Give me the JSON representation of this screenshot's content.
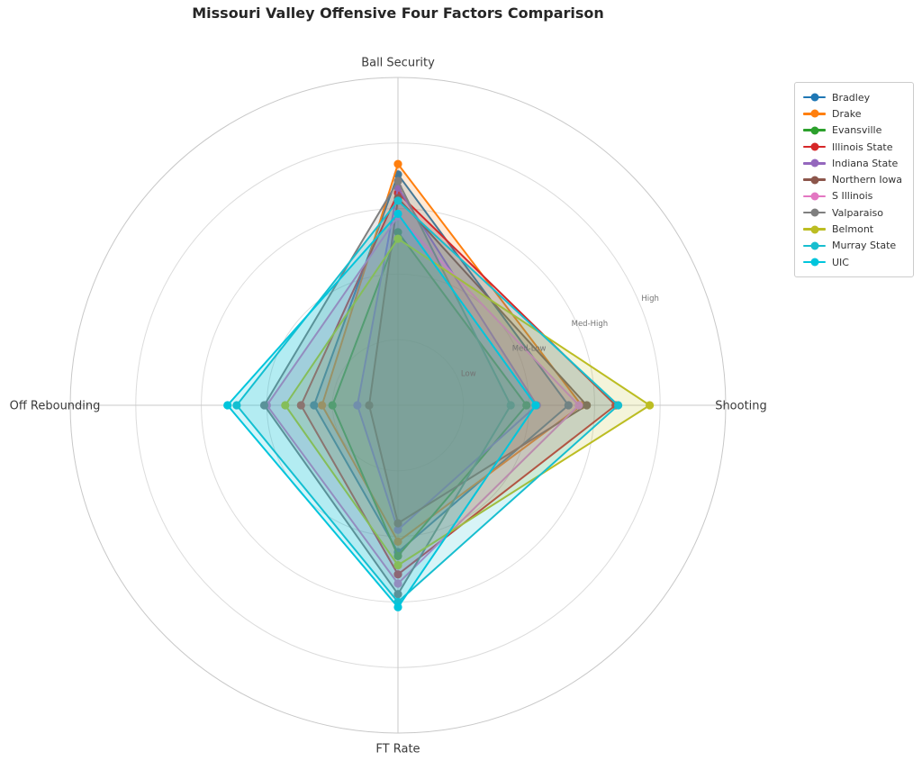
{
  "title": "Missouri Valley Offensive Four Factors Comparison",
  "chart_data": {
    "type": "radar",
    "categories": [
      "Ball Security",
      "Shooting",
      "FT Rate",
      "Off Rebounding"
    ],
    "radial_ticks": [
      {
        "label": "Low",
        "value": 0.25
      },
      {
        "label": "Med-Low",
        "value": 0.5
      },
      {
        "label": "Med-High",
        "value": 0.75
      },
      {
        "label": "High",
        "value": 1.0
      }
    ],
    "rmax": 1.25,
    "grid": true,
    "legend_position": "upper right",
    "series": [
      {
        "name": "Bradley",
        "color": "#1f77b4",
        "values": [
          0.88,
          0.65,
          0.56,
          0.32
        ]
      },
      {
        "name": "Drake",
        "color": "#ff7f0e",
        "values": [
          0.92,
          0.7,
          0.52,
          0.29
        ]
      },
      {
        "name": "Evansville",
        "color": "#2ca02c",
        "values": [
          0.66,
          0.49,
          0.575,
          0.25
        ]
      },
      {
        "name": "Illinois State",
        "color": "#d62728",
        "values": [
          0.81,
          0.83,
          0.645,
          0.37
        ]
      },
      {
        "name": "Indiana State",
        "color": "#9467bd",
        "values": [
          0.83,
          0.53,
          0.475,
          0.155
        ]
      },
      {
        "name": "Northern Iowa",
        "color": "#8c564b",
        "values": [
          0.79,
          0.72,
          0.45,
          0.11
        ]
      },
      {
        "name": "S Illinois",
        "color": "#e377c2",
        "values": [
          0.72,
          0.69,
          0.68,
          0.5
        ]
      },
      {
        "name": "Valparaiso",
        "color": "#7f7f7f",
        "values": [
          0.855,
          0.43,
          0.72,
          0.51
        ]
      },
      {
        "name": "Belmont",
        "color": "#bcbd22",
        "values": [
          0.635,
          0.96,
          0.61,
          0.43
        ]
      },
      {
        "name": "Murray State",
        "color": "#17becf",
        "values": [
          0.78,
          0.84,
          0.75,
          0.615
        ]
      },
      {
        "name": "UIC",
        "color": "#00c5dc",
        "values": [
          0.73,
          0.525,
          0.77,
          0.65
        ]
      }
    ]
  }
}
